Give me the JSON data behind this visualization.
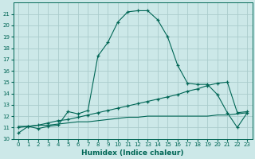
{
  "xlabel": "Humidex (Indice chaleur)",
  "bg_color": "#cce8e8",
  "grid_color": "#aacccc",
  "line_color": "#006655",
  "xlim": [
    -0.5,
    23.5
  ],
  "ylim": [
    10,
    22
  ],
  "xticks": [
    0,
    1,
    2,
    3,
    4,
    5,
    6,
    7,
    8,
    9,
    10,
    11,
    12,
    13,
    14,
    15,
    16,
    17,
    18,
    19,
    20,
    21,
    22,
    23
  ],
  "yticks": [
    10,
    11,
    12,
    13,
    14,
    15,
    16,
    17,
    18,
    19,
    20,
    21
  ],
  "curve1_x": [
    0,
    1,
    2,
    3,
    4,
    5,
    6,
    7,
    8,
    9,
    10,
    11,
    12,
    13,
    14,
    15,
    16,
    17,
    18,
    19,
    20,
    21,
    22,
    23
  ],
  "curve1_y": [
    10.5,
    11.1,
    10.9,
    11.1,
    11.2,
    12.4,
    12.2,
    12.5,
    17.3,
    18.5,
    20.3,
    21.2,
    21.3,
    21.3,
    20.5,
    19.0,
    16.5,
    14.9,
    14.8,
    14.8,
    13.9,
    12.3,
    11.0,
    12.3
  ],
  "curve2_x": [
    0,
    1,
    2,
    3,
    4,
    5,
    6,
    7,
    8,
    9,
    10,
    11,
    12,
    13,
    14,
    15,
    16,
    17,
    18,
    19,
    20,
    21,
    22,
    23
  ],
  "curve2_y": [
    11.0,
    11.1,
    11.2,
    11.4,
    11.6,
    11.7,
    11.9,
    12.1,
    12.3,
    12.5,
    12.7,
    12.9,
    13.1,
    13.3,
    13.5,
    13.7,
    13.9,
    14.2,
    14.4,
    14.7,
    14.9,
    15.0,
    12.3,
    12.4
  ],
  "curve3_x": [
    0,
    1,
    2,
    3,
    4,
    5,
    6,
    7,
    8,
    9,
    10,
    11,
    12,
    13,
    14,
    15,
    16,
    17,
    18,
    19,
    20,
    21,
    22,
    23
  ],
  "curve3_y": [
    11.1,
    11.1,
    11.2,
    11.2,
    11.3,
    11.4,
    11.5,
    11.5,
    11.6,
    11.7,
    11.8,
    11.9,
    11.9,
    12.0,
    12.0,
    12.0,
    12.0,
    12.0,
    12.0,
    12.0,
    12.1,
    12.1,
    12.2,
    12.3
  ]
}
